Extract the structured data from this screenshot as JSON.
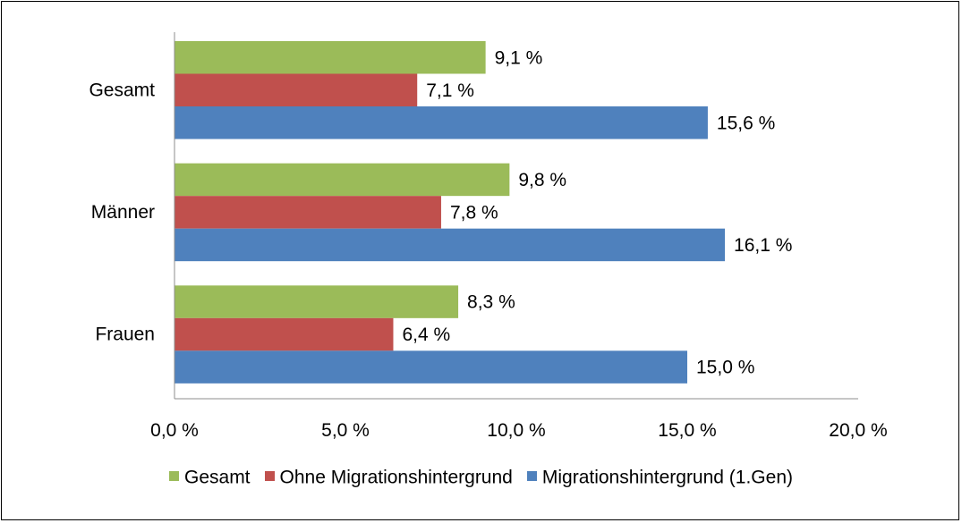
{
  "chart_data": {
    "type": "bar",
    "orientation": "horizontal",
    "categories": [
      "Gesamt",
      "Männer",
      "Frauen"
    ],
    "series": [
      {
        "name": "Gesamt",
        "color": "#9BBB59",
        "values": [
          9.1,
          9.8,
          8.3
        ],
        "labels": [
          "9,1 %",
          "9,8 %",
          "8,3 %"
        ]
      },
      {
        "name": "Ohne Migrationshintergrund",
        "color": "#C0504D",
        "values": [
          7.1,
          7.8,
          6.4
        ],
        "labels": [
          "7,1 %",
          "7,8 %",
          "6,4 %"
        ]
      },
      {
        "name": "Migrationshintergrund (1.Gen)",
        "color": "#4F81BD",
        "values": [
          15.6,
          16.1,
          15.0
        ],
        "labels": [
          "15,6 %",
          "16,1 %",
          "15,0 %"
        ]
      }
    ],
    "xlim": [
      0,
      20
    ],
    "x_ticks": [
      0,
      5,
      10,
      15,
      20
    ],
    "x_tick_labels": [
      "0,0 %",
      "5,0 %",
      "10,0 %",
      "15,0 %",
      "20,0 %"
    ],
    "grid": false,
    "legend_position": "bottom",
    "title": "",
    "xlabel": "",
    "ylabel": ""
  }
}
